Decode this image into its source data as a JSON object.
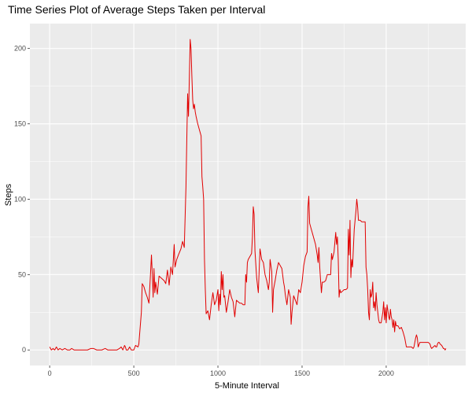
{
  "chart_data": {
    "type": "line",
    "title": "Time Series Plot of Average Steps Taken per Interval",
    "xlabel": "5-Minute Interval",
    "ylabel": "Steps",
    "xlim": [
      -117.5,
      2472.5
    ],
    "ylim": [
      -10.3,
      216.5
    ],
    "x_ticks": [
      0,
      500,
      1000,
      1500,
      2000
    ],
    "y_ticks": [
      0,
      50,
      100,
      150,
      200
    ],
    "grid": true,
    "legend": "none",
    "series": [
      {
        "color": "#e10000",
        "points": [
          [
            0,
            2
          ],
          [
            10,
            0
          ],
          [
            20,
            1
          ],
          [
            30,
            0
          ],
          [
            40,
            2
          ],
          [
            50,
            0
          ],
          [
            60,
            1
          ],
          [
            75,
            0
          ],
          [
            90,
            1
          ],
          [
            105,
            0
          ],
          [
            120,
            0
          ],
          [
            130,
            1
          ],
          [
            145,
            0
          ],
          [
            160,
            0
          ],
          [
            175,
            0
          ],
          [
            200,
            0
          ],
          [
            225,
            0
          ],
          [
            245,
            1
          ],
          [
            260,
            1
          ],
          [
            280,
            0
          ],
          [
            310,
            0
          ],
          [
            330,
            1
          ],
          [
            345,
            0
          ],
          [
            360,
            0
          ],
          [
            380,
            0
          ],
          [
            400,
            0
          ],
          [
            415,
            1
          ],
          [
            425,
            2
          ],
          [
            435,
            0
          ],
          [
            445,
            3
          ],
          [
            450,
            2
          ],
          [
            455,
            0
          ],
          [
            465,
            0
          ],
          [
            475,
            2
          ],
          [
            485,
            0
          ],
          [
            500,
            0
          ],
          [
            510,
            3
          ],
          [
            525,
            2
          ],
          [
            530,
            4
          ],
          [
            545,
            25
          ],
          [
            550,
            44
          ],
          [
            560,
            42
          ],
          [
            570,
            38
          ],
          [
            580,
            35
          ],
          [
            590,
            31
          ],
          [
            600,
            52
          ],
          [
            605,
            63
          ],
          [
            610,
            50
          ],
          [
            615,
            35
          ],
          [
            620,
            54
          ],
          [
            625,
            38
          ],
          [
            630,
            45
          ],
          [
            640,
            37
          ],
          [
            650,
            49
          ],
          [
            660,
            48
          ],
          [
            670,
            47
          ],
          [
            680,
            46
          ],
          [
            690,
            44
          ],
          [
            700,
            53
          ],
          [
            710,
            43
          ],
          [
            720,
            55
          ],
          [
            730,
            50
          ],
          [
            740,
            70
          ],
          [
            745,
            55
          ],
          [
            755,
            60
          ],
          [
            765,
            63
          ],
          [
            780,
            67
          ],
          [
            790,
            72
          ],
          [
            800,
            68
          ],
          [
            810,
            108
          ],
          [
            815,
            140
          ],
          [
            820,
            170
          ],
          [
            825,
            155
          ],
          [
            830,
            180
          ],
          [
            835,
            206
          ],
          [
            840,
            200
          ],
          [
            845,
            182
          ],
          [
            850,
            166
          ],
          [
            855,
            160
          ],
          [
            860,
            163
          ],
          [
            865,
            158
          ],
          [
            870,
            155
          ],
          [
            880,
            150
          ],
          [
            890,
            146
          ],
          [
            900,
            142
          ],
          [
            905,
            115
          ],
          [
            910,
            108
          ],
          [
            915,
            100
          ],
          [
            920,
            60
          ],
          [
            925,
            40
          ],
          [
            930,
            24
          ],
          [
            940,
            26
          ],
          [
            950,
            20
          ],
          [
            960,
            30
          ],
          [
            970,
            38
          ],
          [
            980,
            30
          ],
          [
            990,
            33
          ],
          [
            1000,
            40
          ],
          [
            1005,
            26
          ],
          [
            1010,
            37
          ],
          [
            1015,
            30
          ],
          [
            1020,
            52
          ],
          [
            1025,
            40
          ],
          [
            1030,
            50
          ],
          [
            1035,
            35
          ],
          [
            1040,
            36
          ],
          [
            1050,
            25
          ],
          [
            1060,
            32
          ],
          [
            1070,
            40
          ],
          [
            1080,
            35
          ],
          [
            1090,
            32
          ],
          [
            1100,
            22
          ],
          [
            1110,
            33
          ],
          [
            1120,
            32
          ],
          [
            1130,
            31
          ],
          [
            1140,
            31
          ],
          [
            1150,
            30
          ],
          [
            1160,
            30
          ],
          [
            1165,
            50
          ],
          [
            1170,
            45
          ],
          [
            1175,
            58
          ],
          [
            1180,
            60
          ],
          [
            1190,
            62
          ],
          [
            1200,
            64
          ],
          [
            1205,
            75
          ],
          [
            1210,
            95
          ],
          [
            1215,
            90
          ],
          [
            1220,
            66
          ],
          [
            1230,
            48
          ],
          [
            1240,
            38
          ],
          [
            1250,
            67
          ],
          [
            1260,
            60
          ],
          [
            1270,
            58
          ],
          [
            1280,
            50
          ],
          [
            1290,
            46
          ],
          [
            1300,
            40
          ],
          [
            1305,
            45
          ],
          [
            1310,
            60
          ],
          [
            1320,
            52
          ],
          [
            1325,
            25
          ],
          [
            1330,
            40
          ],
          [
            1340,
            46
          ],
          [
            1350,
            53
          ],
          [
            1360,
            58
          ],
          [
            1370,
            56
          ],
          [
            1380,
            54
          ],
          [
            1390,
            45
          ],
          [
            1395,
            42
          ],
          [
            1400,
            37
          ],
          [
            1410,
            30
          ],
          [
            1420,
            40
          ],
          [
            1430,
            35
          ],
          [
            1435,
            17
          ],
          [
            1440,
            25
          ],
          [
            1450,
            36
          ],
          [
            1460,
            33
          ],
          [
            1470,
            30
          ],
          [
            1480,
            40
          ],
          [
            1490,
            38
          ],
          [
            1500,
            45
          ],
          [
            1510,
            56
          ],
          [
            1520,
            62
          ],
          [
            1530,
            65
          ],
          [
            1535,
            95
          ],
          [
            1540,
            102
          ],
          [
            1545,
            84
          ],
          [
            1550,
            82
          ],
          [
            1560,
            78
          ],
          [
            1570,
            74
          ],
          [
            1580,
            70
          ],
          [
            1590,
            63
          ],
          [
            1595,
            58
          ],
          [
            1600,
            68
          ],
          [
            1605,
            55
          ],
          [
            1610,
            46
          ],
          [
            1615,
            38
          ],
          [
            1620,
            45
          ],
          [
            1630,
            45
          ],
          [
            1640,
            46
          ],
          [
            1650,
            50
          ],
          [
            1660,
            50
          ],
          [
            1670,
            50
          ],
          [
            1675,
            64
          ],
          [
            1680,
            60
          ],
          [
            1690,
            65
          ],
          [
            1700,
            78
          ],
          [
            1705,
            70
          ],
          [
            1710,
            75
          ],
          [
            1715,
            60
          ],
          [
            1720,
            35
          ],
          [
            1725,
            40
          ],
          [
            1730,
            38
          ],
          [
            1740,
            39
          ],
          [
            1750,
            40
          ],
          [
            1760,
            40
          ],
          [
            1770,
            41
          ],
          [
            1775,
            80
          ],
          [
            1780,
            63
          ],
          [
            1785,
            86
          ],
          [
            1790,
            48
          ],
          [
            1795,
            60
          ],
          [
            1800,
            55
          ],
          [
            1810,
            80
          ],
          [
            1820,
            92
          ],
          [
            1825,
            100
          ],
          [
            1830,
            95
          ],
          [
            1835,
            86
          ],
          [
            1845,
            86
          ],
          [
            1855,
            85
          ],
          [
            1865,
            85
          ],
          [
            1875,
            85
          ],
          [
            1880,
            55
          ],
          [
            1885,
            50
          ],
          [
            1890,
            40
          ],
          [
            1895,
            25
          ],
          [
            1900,
            20
          ],
          [
            1905,
            40
          ],
          [
            1910,
            35
          ],
          [
            1915,
            37
          ],
          [
            1920,
            45
          ],
          [
            1925,
            28
          ],
          [
            1930,
            32
          ],
          [
            1935,
            26
          ],
          [
            1940,
            38
          ],
          [
            1945,
            30
          ],
          [
            1950,
            25
          ],
          [
            1955,
            20
          ],
          [
            1960,
            18
          ],
          [
            1970,
            18
          ],
          [
            1980,
            25
          ],
          [
            1985,
            32
          ],
          [
            1990,
            20
          ],
          [
            1995,
            28
          ],
          [
            2000,
            18
          ],
          [
            2005,
            30
          ],
          [
            2010,
            26
          ],
          [
            2015,
            22
          ],
          [
            2020,
            20
          ],
          [
            2025,
            27
          ],
          [
            2030,
            22
          ],
          [
            2035,
            20
          ],
          [
            2040,
            15
          ],
          [
            2045,
            20
          ],
          [
            2050,
            12
          ],
          [
            2055,
            19
          ],
          [
            2060,
            16
          ],
          [
            2070,
            16
          ],
          [
            2080,
            14
          ],
          [
            2090,
            15
          ],
          [
            2100,
            12
          ],
          [
            2110,
            8
          ],
          [
            2120,
            2
          ],
          [
            2130,
            2
          ],
          [
            2140,
            2
          ],
          [
            2150,
            2
          ],
          [
            2160,
            1
          ],
          [
            2165,
            2
          ],
          [
            2170,
            5
          ],
          [
            2175,
            8
          ],
          [
            2180,
            10
          ],
          [
            2185,
            8
          ],
          [
            2190,
            2
          ],
          [
            2200,
            5
          ],
          [
            2210,
            5
          ],
          [
            2220,
            5
          ],
          [
            2230,
            5
          ],
          [
            2240,
            5
          ],
          [
            2250,
            5
          ],
          [
            2260,
            4
          ],
          [
            2265,
            2
          ],
          [
            2270,
            1
          ],
          [
            2280,
            2
          ],
          [
            2290,
            3
          ],
          [
            2295,
            2
          ],
          [
            2300,
            2
          ],
          [
            2305,
            4
          ],
          [
            2310,
            5
          ],
          [
            2315,
            5
          ],
          [
            2320,
            4
          ],
          [
            2330,
            3
          ],
          [
            2340,
            1
          ],
          [
            2345,
            1
          ],
          [
            2350,
            0
          ],
          [
            2355,
            1
          ]
        ]
      }
    ]
  }
}
